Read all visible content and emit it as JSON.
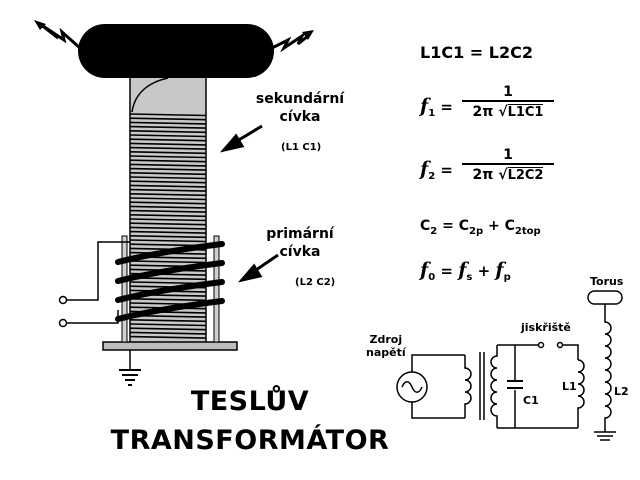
{
  "labels": {
    "secondary": [
      "sekundární",
      "cívka"
    ],
    "secondary_sub": "(L1 C1)",
    "primary": [
      "primární",
      "cívka"
    ],
    "primary_sub": "(L2 C2)"
  },
  "title": [
    "TESLŮV",
    "TRANSFORMÁTOR"
  ],
  "equations": {
    "eq1": "L1C1 = L2C2",
    "f1_symbol": "f",
    "f1_index": "1",
    "f1_num": "1",
    "f1_den_prefix": "2π",
    "f1_root": "L1C1",
    "f2_symbol": "f",
    "f2_index": "2",
    "f2_num": "1",
    "f2_den_prefix": "2π",
    "f2_root": "L2C2",
    "c2": "C",
    "c2_index": "2",
    "c2_eq": "= C",
    "c2_sub1": "2p",
    "c2_plus": "+ C",
    "c2_sub2": "2top",
    "f0_symbol": "f",
    "f0_index": "0",
    "f0_eq": "=",
    "fs_symbol": "f",
    "fs_index": "s",
    "f0_plus": "+",
    "fp_symbol": "f",
    "fp_index": "p"
  },
  "circuit": {
    "source": [
      "Zdroj",
      "napětí"
    ],
    "spark_gap": "jiskřiště",
    "torus": "Torus",
    "c1": "C1",
    "l1": "L1",
    "l2": "L2"
  }
}
